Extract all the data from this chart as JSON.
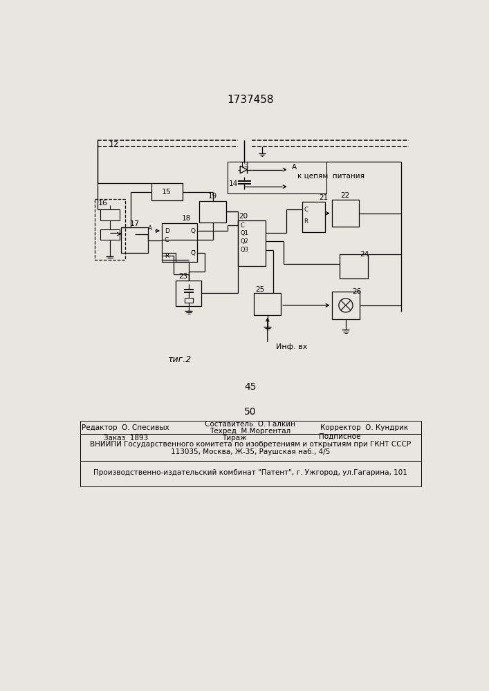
{
  "title": "1737458",
  "bg_color": "#e8e6e0",
  "fig_color": "#e8e6e0",
  "label_45": "45",
  "label_50": "50",
  "fig_label": "τиг.2",
  "inf_label": "Инф. вх",
  "pitania_label": "к цепям  питания"
}
